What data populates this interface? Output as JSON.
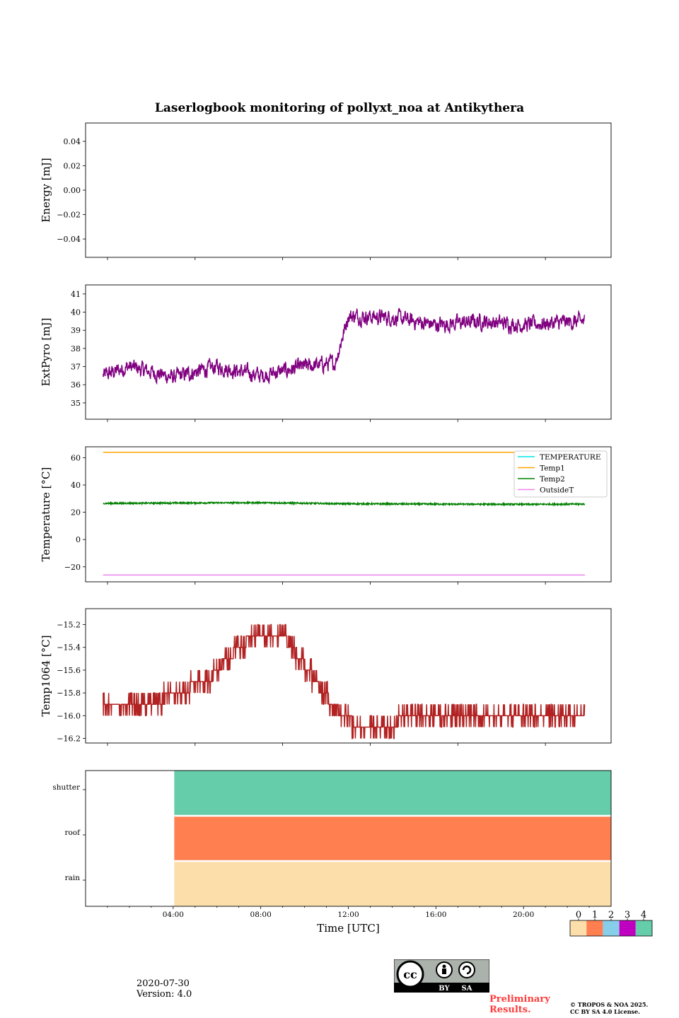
{
  "title": "Laserlogbook monitoring of pollyxt_noa at Antikythera",
  "footer": {
    "date": "2020-07-30",
    "version": "Version: 4.0",
    "preliminary_line1": "Preliminary",
    "preliminary_line2": "Results.",
    "copyright_line1": "© TROPOS & NOA 2025.",
    "copyright_line2": "CC BY SA 4.0 License.",
    "cc_label_by": "BY",
    "cc_label_sa": "SA",
    "cc_label_cc": "cc"
  },
  "chart_data": [
    {
      "type": "line",
      "panel": "energy",
      "ylabel": "Energy [mJ]",
      "ylim": [
        -0.055,
        0.055
      ],
      "yticks": [
        0.04,
        0.02,
        0.0,
        -0.02,
        -0.04
      ],
      "ytick_labels": [
        "0.04",
        "0.02",
        "0.00",
        "−0.02",
        "−0.04"
      ],
      "series": []
    },
    {
      "type": "line",
      "panel": "extpyro",
      "ylabel": "ExtPyro [mJ]",
      "ylim": [
        34.1,
        41.5
      ],
      "yticks": [
        41,
        40,
        39,
        38,
        37,
        36,
        35
      ],
      "ytick_labels": [
        "41",
        "40",
        "39",
        "38",
        "37",
        "36",
        "35"
      ],
      "series": [
        {
          "name": "ExtPyro",
          "color": "#800080",
          "x": [
            0.8,
            2,
            4,
            6,
            8,
            10,
            11.4,
            12.0,
            14,
            16,
            18,
            20,
            22.8
          ],
          "values": [
            36.5,
            37.0,
            36.4,
            37.0,
            36.5,
            37.0,
            37.2,
            39.8,
            39.7,
            39.3,
            39.5,
            39.3,
            39.5
          ],
          "noise": 0.75
        }
      ]
    },
    {
      "type": "line",
      "panel": "temperature",
      "ylabel": "Temperature [°C]",
      "ylim": [
        -31,
        68
      ],
      "yticks": [
        60,
        40,
        20,
        0,
        -20
      ],
      "ytick_labels": [
        "60",
        "40",
        "20",
        "0",
        "−20"
      ],
      "legend": [
        "TEMPERATURE",
        "Temp1",
        "Temp2",
        "OutsideT"
      ],
      "series": [
        {
          "name": "TEMPERATURE",
          "color": "#00e5e5",
          "x": [],
          "values": []
        },
        {
          "name": "Temp1",
          "color": "#ffa500",
          "x": [
            0.8,
            22.8
          ],
          "values": [
            64,
            64
          ]
        },
        {
          "name": "Temp2",
          "color": "#008000",
          "x": [
            0.8,
            4,
            8,
            12,
            16,
            20,
            22.8
          ],
          "values": [
            26.5,
            26.8,
            27.0,
            26.2,
            26.0,
            25.8,
            26.0
          ],
          "noise": 0.5
        },
        {
          "name": "OutsideT",
          "color": "#ee82ee",
          "x": [
            0.8,
            22.8
          ],
          "values": [
            -26,
            -26
          ]
        }
      ]
    },
    {
      "type": "line",
      "panel": "temp1064",
      "ylabel": "Temp1064 [°C]",
      "ylim": [
        -16.24,
        -15.06
      ],
      "yticks": [
        -15.2,
        -15.4,
        -15.6,
        -15.8,
        -16.0,
        -16.2
      ],
      "ytick_labels": [
        "−15.2",
        "−15.4",
        "−15.6",
        "−15.8",
        "−16.0",
        "−16.2"
      ],
      "series": [
        {
          "name": "Temp1064",
          "color": "#b22222",
          "x": [
            0.8,
            2.5,
            4.0,
            5.5,
            7.0,
            8.0,
            9.0,
            10.5,
            11.5,
            12.5,
            13.5,
            14.5,
            16,
            18,
            20,
            22.8
          ],
          "values": [
            -15.85,
            -15.95,
            -15.8,
            -15.7,
            -15.4,
            -15.25,
            -15.3,
            -15.7,
            -15.95,
            -16.1,
            -16.15,
            -16.0,
            -15.95,
            -16.0,
            -15.95,
            -16.05
          ],
          "step": 0.1
        }
      ]
    },
    {
      "type": "heatmap",
      "panel": "status",
      "rows": [
        "shutter",
        "roof",
        "rain"
      ],
      "row_colors": {
        "shutter": "#66cdaa",
        "roof": "#ff7f50",
        "rain": "#fcdeab"
      },
      "x_start": 4.05,
      "x_end": 24.0,
      "xlabel": "Time [UTC]",
      "xlim": [
        0,
        24
      ],
      "xticks": [
        4,
        8,
        12,
        16,
        20
      ],
      "xtick_labels": [
        "04:00",
        "08:00",
        "12:00",
        "16:00",
        "20:00"
      ],
      "colorbar": {
        "ticks": [
          "0",
          "1",
          "2",
          "3",
          "4"
        ],
        "colors": [
          "#fcdeab",
          "#ff7f50",
          "#87ceeb",
          "#c000c0",
          "#66cdaa"
        ]
      }
    }
  ]
}
